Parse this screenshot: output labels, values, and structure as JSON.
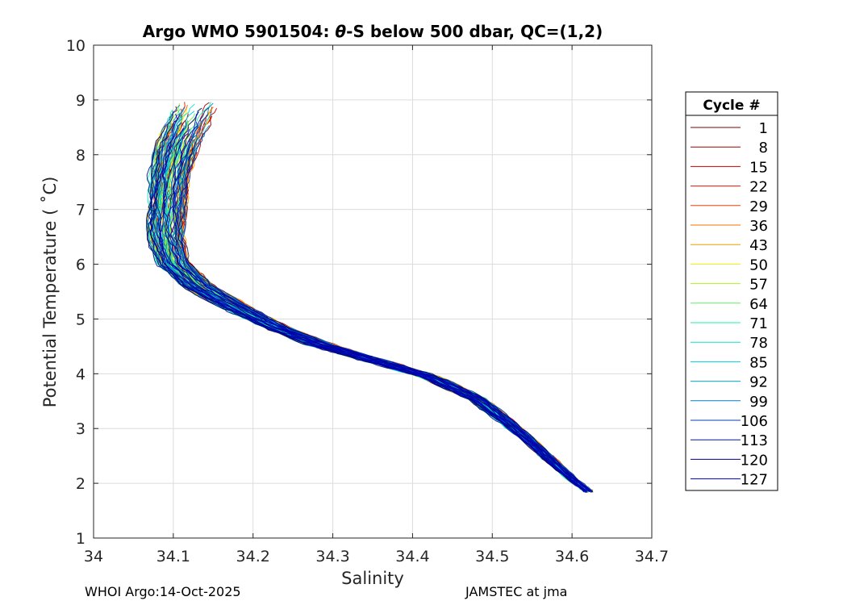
{
  "chart_data": {
    "type": "line",
    "title_prefix": "Argo WMO 5901504: ",
    "title_theta": "θ",
    "title_suffix": "-S below 500 dbar,  QC=(1,2)",
    "xlabel": "Salinity",
    "ylabel": "Potential Temperature ( ˚C)",
    "xlim": [
      34.0,
      34.7
    ],
    "ylim": [
      1,
      10
    ],
    "xticks": [
      34,
      34.1,
      34.2,
      34.3,
      34.4,
      34.5,
      34.6,
      34.7
    ],
    "xtick_labels": [
      "34",
      "34.1",
      "34.2",
      "34.3",
      "34.4",
      "34.5",
      "34.6",
      "34.7"
    ],
    "yticks": [
      1,
      2,
      3,
      4,
      5,
      6,
      7,
      8,
      9,
      10
    ],
    "ytick_labels": [
      "1",
      "2",
      "3",
      "4",
      "5",
      "6",
      "7",
      "8",
      "9",
      "10"
    ],
    "grid": true,
    "legend_position": "right",
    "legend_title": "Cycle #",
    "legend": [
      {
        "label": "1",
        "color": "#800000"
      },
      {
        "label": "8",
        "color": "#a00000"
      },
      {
        "label": "15",
        "color": "#c80000"
      },
      {
        "label": "22",
        "color": "#e01800"
      },
      {
        "label": "29",
        "color": "#f04000"
      },
      {
        "label": "36",
        "color": "#f07000"
      },
      {
        "label": "43",
        "color": "#f0a000"
      },
      {
        "label": "50",
        "color": "#f0f000"
      },
      {
        "label": "57",
        "color": "#b0f020"
      },
      {
        "label": "64",
        "color": "#60f060"
      },
      {
        "label": "71",
        "color": "#20f0a0"
      },
      {
        "label": "78",
        "color": "#10e0c0"
      },
      {
        "label": "85",
        "color": "#00d0e0"
      },
      {
        "label": "92",
        "color": "#00a8d8"
      },
      {
        "label": "99",
        "color": "#0080c8"
      },
      {
        "label": "106",
        "color": "#0040b0"
      },
      {
        "label": "113",
        "color": "#001890"
      },
      {
        "label": "120",
        "color": "#000070"
      },
      {
        "label": "127",
        "color": "#0000c0"
      }
    ],
    "reference_profile": {
      "salinity": [
        34.135,
        34.12,
        34.105,
        34.095,
        34.09,
        34.09,
        34.1,
        34.13,
        34.18,
        34.22,
        34.28,
        34.35,
        34.42,
        34.48,
        34.52,
        34.56,
        34.59,
        34.62
      ],
      "temperature": [
        9.1,
        8.7,
        8.2,
        7.6,
        7.0,
        6.5,
        6.0,
        5.6,
        5.2,
        4.9,
        4.55,
        4.25,
        3.95,
        3.55,
        3.1,
        2.6,
        2.2,
        1.85
      ]
    },
    "series_count": 19
  },
  "footer": {
    "left": "WHOI Argo:14-Oct-2025",
    "right": "JAMSTEC at jma"
  }
}
